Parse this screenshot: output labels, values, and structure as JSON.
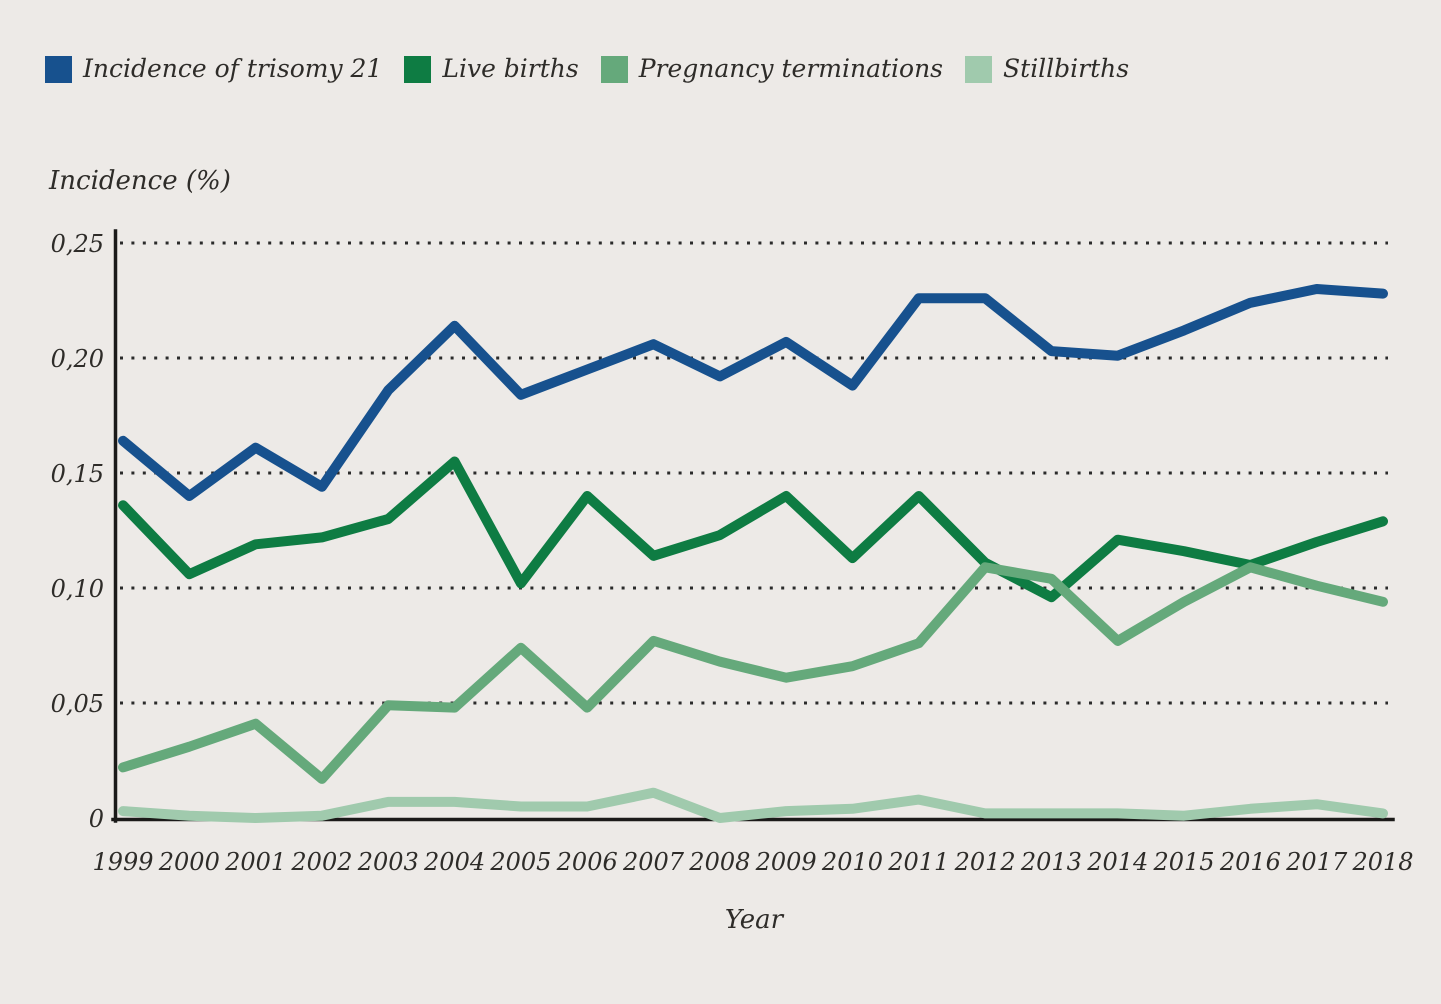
{
  "legend": [
    {
      "label": "Incidence of trisomy 21",
      "color": "#17518e"
    },
    {
      "label": "Live births",
      "color": "#0e7c43"
    },
    {
      "label": "Pregnancy terminations",
      "color": "#65a97b"
    },
    {
      "label": "Stillbirths",
      "color": "#a0caad"
    }
  ],
  "chart_data": {
    "type": "line",
    "title": "",
    "ylabel": "Incidence (%)",
    "xlabel": "Year",
    "x": [
      1999,
      2000,
      2001,
      2002,
      2003,
      2004,
      2005,
      2006,
      2007,
      2008,
      2009,
      2010,
      2011,
      2012,
      2013,
      2014,
      2015,
      2016,
      2017,
      2018
    ],
    "ylim": [
      0,
      0.25
    ],
    "ytick_values": [
      0,
      0.05,
      0.1,
      0.15,
      0.2,
      0.25
    ],
    "ytick_labels": [
      "0",
      "0,05",
      "0,10",
      "0,15",
      "0,20",
      "0,25"
    ],
    "grid": "dotted-horizontal",
    "legend_position": "top-left",
    "series": [
      {
        "name": "Incidence of trisomy 21",
        "color": "#17518e",
        "values": [
          0.164,
          0.14,
          0.161,
          0.144,
          0.186,
          0.214,
          0.184,
          0.195,
          0.206,
          0.192,
          0.207,
          0.188,
          0.226,
          0.226,
          0.203,
          0.201,
          0.212,
          0.224,
          0.23,
          0.228
        ]
      },
      {
        "name": "Live births",
        "color": "#0e7c43",
        "values": [
          0.136,
          0.106,
          0.119,
          0.122,
          0.13,
          0.155,
          0.102,
          0.14,
          0.114,
          0.123,
          0.14,
          0.113,
          0.14,
          0.111,
          0.096,
          0.121,
          0.116,
          0.11,
          0.12,
          0.129
        ]
      },
      {
        "name": "Pregnancy terminations",
        "color": "#65a97b",
        "values": [
          0.022,
          0.031,
          0.041,
          0.017,
          0.049,
          0.048,
          0.074,
          0.048,
          0.077,
          0.068,
          0.061,
          0.066,
          0.076,
          0.109,
          0.104,
          0.077,
          0.094,
          0.109,
          0.101,
          0.094
        ]
      },
      {
        "name": "Stillbirths",
        "color": "#a0caad",
        "values": [
          0.003,
          0.001,
          0.0,
          0.001,
          0.007,
          0.007,
          0.005,
          0.005,
          0.011,
          0.0,
          0.003,
          0.004,
          0.008,
          0.002,
          0.002,
          0.002,
          0.001,
          0.004,
          0.006,
          0.002
        ]
      }
    ]
  }
}
